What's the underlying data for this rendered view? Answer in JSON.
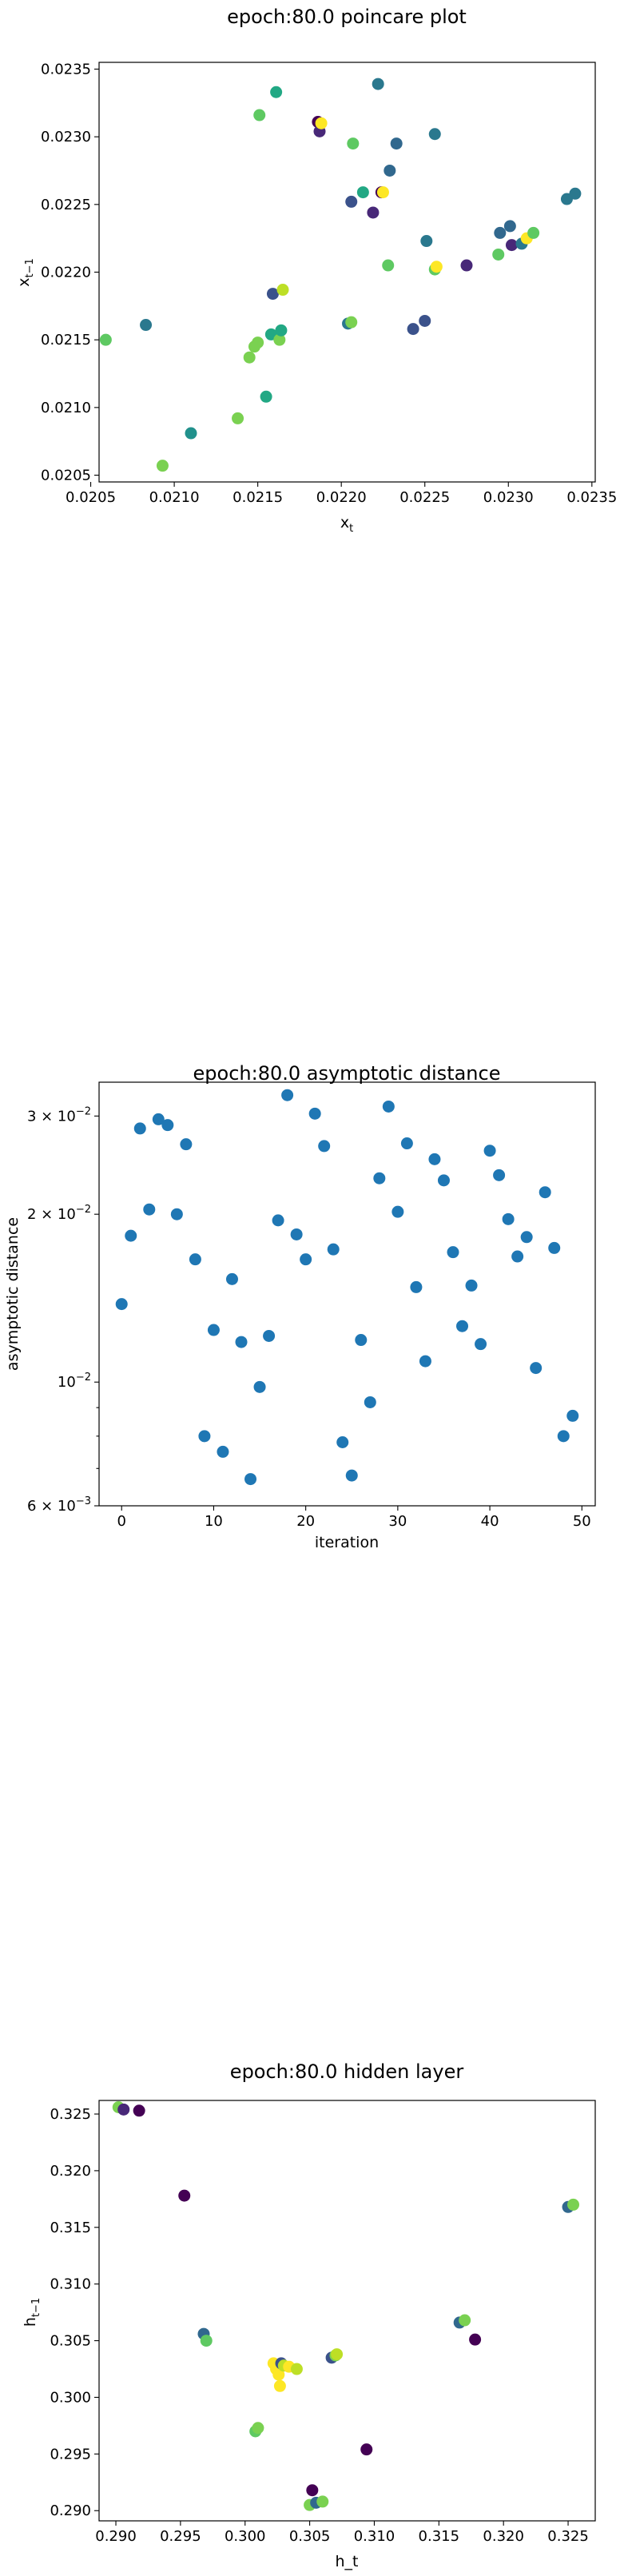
{
  "chart_data": [
    {
      "type": "scatter",
      "title": "epoch:80.0 poincare plot",
      "xlabel_base": "x",
      "xlabel_sub": "t",
      "ylabel_base": "x",
      "ylabel_sub": "t−1",
      "xlim": [
        0.02055,
        0.02352
      ],
      "ylim": [
        0.02045,
        0.02355
      ],
      "xticks": [
        "0.0205",
        "0.0210",
        "0.0215",
        "0.0220",
        "0.0225",
        "0.0230",
        "0.0235"
      ],
      "xtick_values": [
        0.0205,
        0.021,
        0.0215,
        0.022,
        0.0225,
        0.023,
        0.0235
      ],
      "yticks": [
        "0.0205",
        "0.0210",
        "0.0215",
        "0.0220",
        "0.0225",
        "0.0230",
        "0.0235"
      ],
      "ytick_values": [
        0.0205,
        0.021,
        0.0215,
        0.022,
        0.0225,
        0.023,
        0.0235
      ],
      "points": [
        {
          "x": 0.02059,
          "y": 0.0215,
          "c": "#5ec962"
        },
        {
          "x": 0.02083,
          "y": 0.02161,
          "c": "#2a788e"
        },
        {
          "x": 0.02093,
          "y": 0.02057,
          "c": "#7ad151"
        },
        {
          "x": 0.0211,
          "y": 0.02081,
          "c": "#21918c"
        },
        {
          "x": 0.02138,
          "y": 0.02092,
          "c": "#7ad151"
        },
        {
          "x": 0.02145,
          "y": 0.02137,
          "c": "#7ad151"
        },
        {
          "x": 0.02148,
          "y": 0.02145,
          "c": "#7ad151"
        },
        {
          "x": 0.0215,
          "y": 0.02148,
          "c": "#7ad151"
        },
        {
          "x": 0.02151,
          "y": 0.02316,
          "c": "#5ec962"
        },
        {
          "x": 0.02155,
          "y": 0.02108,
          "c": "#22a884"
        },
        {
          "x": 0.02158,
          "y": 0.02154,
          "c": "#22a884"
        },
        {
          "x": 0.02159,
          "y": 0.02184,
          "c": "#3b528b"
        },
        {
          "x": 0.02161,
          "y": 0.02333,
          "c": "#22a884"
        },
        {
          "x": 0.02163,
          "y": 0.0215,
          "c": "#7ad151"
        },
        {
          "x": 0.02164,
          "y": 0.02157,
          "c": "#22a884"
        },
        {
          "x": 0.02165,
          "y": 0.02187,
          "c": "#bddf26"
        },
        {
          "x": 0.02186,
          "y": 0.02311,
          "c": "#440154"
        },
        {
          "x": 0.02187,
          "y": 0.02304,
          "c": "#482878"
        },
        {
          "x": 0.02188,
          "y": 0.0231,
          "c": "#fde725"
        },
        {
          "x": 0.02204,
          "y": 0.02162,
          "c": "#2a788e"
        },
        {
          "x": 0.02206,
          "y": 0.02163,
          "c": "#7ad151"
        },
        {
          "x": 0.02206,
          "y": 0.02252,
          "c": "#3b528b"
        },
        {
          "x": 0.02207,
          "y": 0.02295,
          "c": "#5ec962"
        },
        {
          "x": 0.02213,
          "y": 0.02259,
          "c": "#22a884"
        },
        {
          "x": 0.02219,
          "y": 0.02244,
          "c": "#482878"
        },
        {
          "x": 0.02222,
          "y": 0.02339,
          "c": "#2a788e"
        },
        {
          "x": 0.02224,
          "y": 0.02259,
          "c": "#440154"
        },
        {
          "x": 0.02225,
          "y": 0.02259,
          "c": "#fde725"
        },
        {
          "x": 0.02228,
          "y": 0.02205,
          "c": "#5ec962"
        },
        {
          "x": 0.02229,
          "y": 0.02275,
          "c": "#31688e"
        },
        {
          "x": 0.02233,
          "y": 0.02295,
          "c": "#31688e"
        },
        {
          "x": 0.02243,
          "y": 0.02158,
          "c": "#3b528b"
        },
        {
          "x": 0.0225,
          "y": 0.02164,
          "c": "#3b528b"
        },
        {
          "x": 0.02251,
          "y": 0.02223,
          "c": "#2a788e"
        },
        {
          "x": 0.02256,
          "y": 0.02302,
          "c": "#2a788e"
        },
        {
          "x": 0.02256,
          "y": 0.02202,
          "c": "#5ec962"
        },
        {
          "x": 0.02257,
          "y": 0.02204,
          "c": "#fde725"
        },
        {
          "x": 0.02275,
          "y": 0.02205,
          "c": "#482878"
        },
        {
          "x": 0.02294,
          "y": 0.02213,
          "c": "#5ec962"
        },
        {
          "x": 0.02295,
          "y": 0.02229,
          "c": "#31688e"
        },
        {
          "x": 0.02301,
          "y": 0.02234,
          "c": "#31688e"
        },
        {
          "x": 0.02302,
          "y": 0.0222,
          "c": "#482878"
        },
        {
          "x": 0.02308,
          "y": 0.02221,
          "c": "#2a788e"
        },
        {
          "x": 0.02311,
          "y": 0.02225,
          "c": "#fde725"
        },
        {
          "x": 0.02315,
          "y": 0.02229,
          "c": "#5ec962"
        },
        {
          "x": 0.02335,
          "y": 0.02254,
          "c": "#2a788e"
        },
        {
          "x": 0.0234,
          "y": 0.02258,
          "c": "#2a788e"
        }
      ]
    },
    {
      "type": "scatter",
      "title": "epoch:80.0 asymptotic distance",
      "xlabel": "iteration",
      "ylabel": "asymptotic distance",
      "yscale": "log",
      "xlim": [
        -2.45,
        51.45
      ],
      "ylim": [
        0.006,
        0.0345
      ],
      "xticks": [
        "0",
        "10",
        "20",
        "30",
        "40",
        "50"
      ],
      "xtick_values": [
        0,
        10,
        20,
        30,
        40,
        50
      ],
      "yticks": [
        {
          "m": "3",
          "e": "−2",
          "v": 0.03
        },
        {
          "m": "2",
          "e": "−2",
          "v": 0.02
        },
        {
          "m": "10",
          "e": "−2",
          "v": 0.01,
          "plain": true
        },
        {
          "m": "6",
          "e": "−3",
          "v": 0.006
        }
      ],
      "minor_yticks": [
        0.007,
        0.008,
        0.009,
        0.04
      ],
      "color": "#1f77b4",
      "values": [
        0.0138,
        0.0183,
        0.0285,
        0.0204,
        0.0296,
        0.0289,
        0.02,
        0.0267,
        0.0166,
        0.008,
        0.0124,
        0.0075,
        0.0153,
        0.0118,
        0.0067,
        0.0098,
        0.0121,
        0.0195,
        0.0327,
        0.0184,
        0.0166,
        0.0303,
        0.0265,
        0.0173,
        0.0078,
        0.0068,
        0.0119,
        0.0092,
        0.0232,
        0.0312,
        0.0202,
        0.0268,
        0.0148,
        0.0109,
        0.0251,
        0.023,
        0.0171,
        0.0126,
        0.0149,
        0.0117,
        0.026,
        0.0235,
        0.0196,
        0.0168,
        0.0182,
        0.0106,
        0.0219,
        0.0174,
        0.008,
        0.0087
      ]
    },
    {
      "type": "scatter",
      "title": "epoch:80.0 hidden layer",
      "xlabel": "h_t",
      "ylabel_base": "h",
      "ylabel_sub": "t−1",
      "xlim": [
        0.2887,
        0.3271
      ],
      "ylim": [
        0.2891,
        0.3262
      ],
      "xticks": [
        "0.290",
        "0.295",
        "0.300",
        "0.305",
        "0.310",
        "0.315",
        "0.320",
        "0.325"
      ],
      "xtick_values": [
        0.29,
        0.295,
        0.3,
        0.305,
        0.31,
        0.315,
        0.32,
        0.325
      ],
      "yticks": [
        "0.290",
        "0.295",
        "0.300",
        "0.305",
        "0.310",
        "0.315",
        "0.320",
        "0.325"
      ],
      "ytick_values": [
        0.29,
        0.295,
        0.3,
        0.305,
        0.31,
        0.315,
        0.32,
        0.325
      ],
      "points": [
        {
          "x": 0.2902,
          "y": 0.3256,
          "c": "#7ad151"
        },
        {
          "x": 0.2906,
          "y": 0.3254,
          "c": "#482878"
        },
        {
          "x": 0.2918,
          "y": 0.3253,
          "c": "#440154"
        },
        {
          "x": 0.2953,
          "y": 0.3178,
          "c": "#440154"
        },
        {
          "x": 0.2968,
          "y": 0.3056,
          "c": "#31688e"
        },
        {
          "x": 0.297,
          "y": 0.305,
          "c": "#5ec962"
        },
        {
          "x": 0.3008,
          "y": 0.297,
          "c": "#5ec962"
        },
        {
          "x": 0.301,
          "y": 0.2973,
          "c": "#7ad151"
        },
        {
          "x": 0.3022,
          "y": 0.303,
          "c": "#fde725"
        },
        {
          "x": 0.3024,
          "y": 0.3025,
          "c": "#fde725"
        },
        {
          "x": 0.3026,
          "y": 0.302,
          "c": "#fde725"
        },
        {
          "x": 0.3027,
          "y": 0.301,
          "c": "#fde725"
        },
        {
          "x": 0.3028,
          "y": 0.303,
          "c": "#3b528b"
        },
        {
          "x": 0.303,
          "y": 0.3028,
          "c": "#bddf26"
        },
        {
          "x": 0.3034,
          "y": 0.3027,
          "c": "#fde725"
        },
        {
          "x": 0.304,
          "y": 0.3025,
          "c": "#bddf26"
        },
        {
          "x": 0.305,
          "y": 0.2905,
          "c": "#7ad151"
        },
        {
          "x": 0.3052,
          "y": 0.2918,
          "c": "#440154"
        },
        {
          "x": 0.3055,
          "y": 0.2907,
          "c": "#31688e"
        },
        {
          "x": 0.306,
          "y": 0.2908,
          "c": "#7ad151"
        },
        {
          "x": 0.3067,
          "y": 0.3035,
          "c": "#3b528b"
        },
        {
          "x": 0.307,
          "y": 0.3037,
          "c": "#7ad151"
        },
        {
          "x": 0.3071,
          "y": 0.3038,
          "c": "#bddf26"
        },
        {
          "x": 0.3094,
          "y": 0.2954,
          "c": "#440154"
        },
        {
          "x": 0.3166,
          "y": 0.3066,
          "c": "#31688e"
        },
        {
          "x": 0.317,
          "y": 0.3068,
          "c": "#7ad151"
        },
        {
          "x": 0.3178,
          "y": 0.3051,
          "c": "#440154"
        },
        {
          "x": 0.325,
          "y": 0.3168,
          "c": "#31688e"
        },
        {
          "x": 0.3254,
          "y": 0.317,
          "c": "#7ad151"
        }
      ]
    }
  ]
}
